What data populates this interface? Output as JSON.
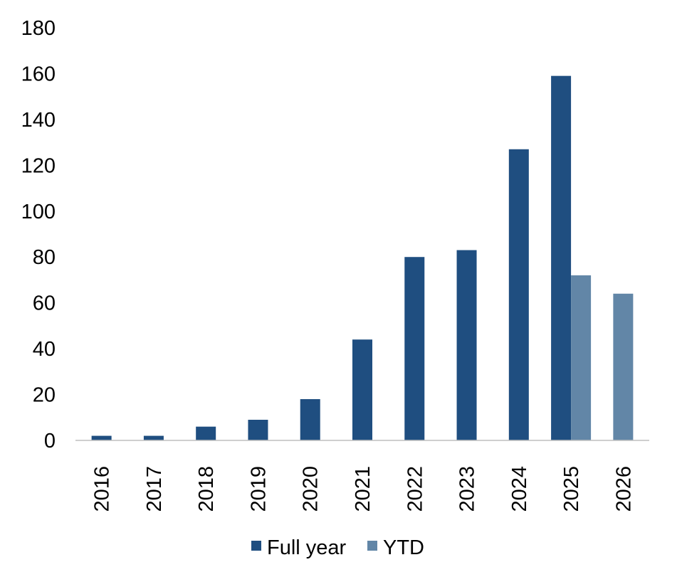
{
  "chart_data": {
    "type": "bar",
    "title": "",
    "xlabel": "",
    "ylabel": "",
    "categories": [
      "2016",
      "2017",
      "2018",
      "2019",
      "2020",
      "2021",
      "2022",
      "2023",
      "2024",
      "2025",
      "2026"
    ],
    "series": [
      {
        "name": "Full year",
        "color": "#1f4e80",
        "values": [
          2,
          2,
          6,
          9,
          18,
          44,
          80,
          83,
          127,
          159,
          null
        ]
      },
      {
        "name": "YTD",
        "color": "#6286a7",
        "values": [
          null,
          null,
          null,
          null,
          null,
          null,
          null,
          null,
          null,
          72,
          64
        ]
      }
    ],
    "ylim": [
      0,
      180
    ],
    "yticks": [
      "0",
      "20",
      "40",
      "60",
      "80",
      "100",
      "120",
      "140",
      "160",
      "180"
    ],
    "grid": false,
    "legend": "bottom",
    "colors": {
      "axis": "#bfbfbf"
    }
  }
}
